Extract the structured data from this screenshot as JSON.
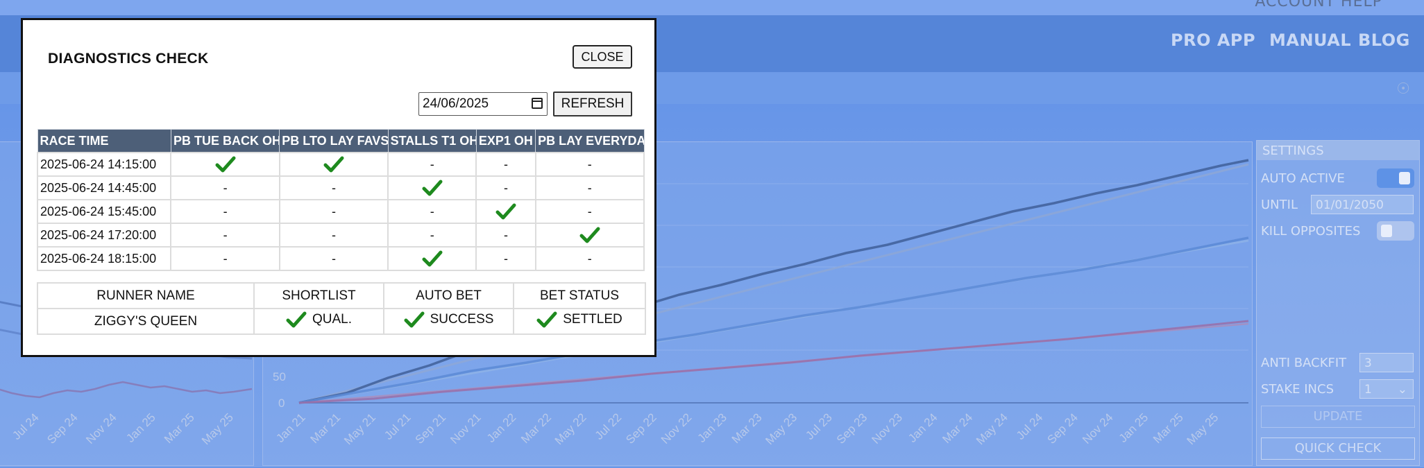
{
  "background": {
    "top_strip_text": "ACCOUNT   HELP",
    "nav": {
      "pro_app": "PRO APP",
      "manual": "MANUAL",
      "blog": "BLOG"
    },
    "left_chart": {
      "x_ticks": [
        "Jul 24",
        "Sep 24",
        "Nov 24",
        "Jan 25",
        "Mar 25",
        "May 25"
      ]
    },
    "main_chart": {
      "y_ticks": [
        "0",
        "50"
      ],
      "x_ticks": [
        "Jan 21",
        "Mar 21",
        "May 21",
        "Jul 21",
        "Sep 21",
        "Nov 21",
        "Jan 22",
        "Mar 22",
        "May 22",
        "Jul 22",
        "Sep 22",
        "Nov 22",
        "Jan 23",
        "Mar 23",
        "May 23",
        "Jul 23",
        "Sep 23",
        "Nov 23",
        "Jan 24",
        "Mar 24",
        "May 24",
        "Jul 24",
        "Sep 24",
        "Nov 24",
        "Jan 25",
        "Mar 25",
        "May 25"
      ]
    },
    "settings": {
      "title": "SETTINGS",
      "auto_active_label": "AUTO ACTIVE",
      "until_label": "UNTIL",
      "until_value": "01/01/2050",
      "kill_opposites_label": "KILL OPPOSITES",
      "anti_backfit_label": "ANTI BACKFIT",
      "anti_backfit_value": "3",
      "stake_incs_label": "STAKE INCS",
      "stake_incs_value": "1",
      "update_label": "UPDATE",
      "quick_check_label": "QUICK CHECK"
    }
  },
  "modal": {
    "title": "DIAGNOSTICS CHECK",
    "close_label": "CLOSE",
    "date_value": "24/06/2025",
    "refresh_label": "REFRESH",
    "race_table": {
      "headers": [
        "RACE TIME",
        "PB TUE BACK OH",
        "PB LTO LAY FAVS",
        "STALLS T1 OH",
        "EXP1 OH",
        "PB LAY EVERYDAY"
      ],
      "rows": [
        {
          "time": "2025-06-24 14:15:00",
          "cells": [
            "tick",
            "tick",
            "-",
            "-",
            "-"
          ]
        },
        {
          "time": "2025-06-24 14:45:00",
          "cells": [
            "-",
            "-",
            "tick",
            "-",
            "-"
          ]
        },
        {
          "time": "2025-06-24 15:45:00",
          "cells": [
            "-",
            "-",
            "-",
            "tick",
            "-"
          ]
        },
        {
          "time": "2025-06-24 17:20:00",
          "cells": [
            "-",
            "-",
            "-",
            "-",
            "tick"
          ]
        },
        {
          "time": "2025-06-24 18:15:00",
          "cells": [
            "-",
            "-",
            "tick",
            "-",
            "-"
          ]
        }
      ]
    },
    "runner_table": {
      "headers": [
        "RUNNER NAME",
        "SHORTLIST",
        "AUTO BET",
        "BET STATUS"
      ],
      "row": {
        "runner": "ZIGGY'S QUEEN",
        "shortlist": "QUAL.",
        "auto_bet": "SUCCESS",
        "bet_status": "SETTLED"
      }
    },
    "colors": {
      "tick": "#1e8a1e",
      "header_bg": "#4d5f78"
    }
  }
}
